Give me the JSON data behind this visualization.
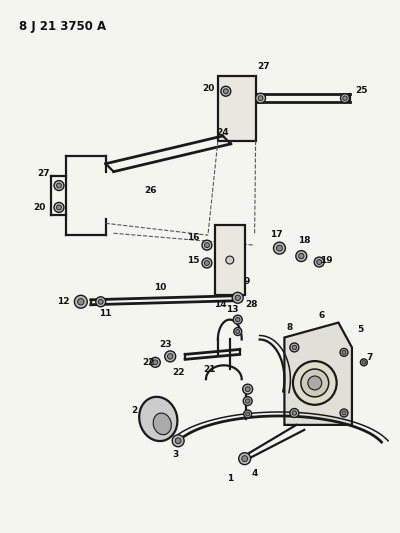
{
  "title": "8 J 21 3750 A",
  "bg_color": "#f5f5f0",
  "line_color": "#1a1a1a",
  "text_color": "#111111",
  "fig_width": 4.0,
  "fig_height": 5.33,
  "dpi": 100
}
